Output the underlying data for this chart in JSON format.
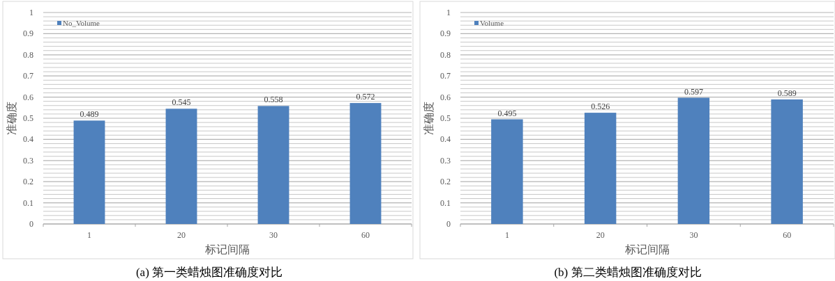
{
  "chart_data": [
    {
      "type": "bar",
      "title": "(a)  第一类蜡烛图准确度对比",
      "xlabel": "标记间隔",
      "ylabel": "准确度",
      "categories": [
        "1",
        "20",
        "30",
        "60"
      ],
      "series": [
        {
          "name": "No_Volume",
          "color": "#4f81bd",
          "values": [
            0.489,
            0.545,
            0.558,
            0.572
          ]
        }
      ],
      "ylim": [
        0,
        1
      ],
      "yticks": [
        0,
        0.1,
        0.2,
        0.3,
        0.4,
        0.5,
        0.6,
        0.7,
        0.8,
        0.9,
        1
      ],
      "grid": "y",
      "legend": "top left",
      "data_labels": true
    },
    {
      "type": "bar",
      "title": "(b)  第二类蜡烛图准确度对比",
      "xlabel": "标记间隔",
      "ylabel": "准确度",
      "categories": [
        "1",
        "20",
        "30",
        "60"
      ],
      "series": [
        {
          "name": "Volume",
          "color": "#4f81bd",
          "values": [
            0.495,
            0.526,
            0.597,
            0.589
          ]
        }
      ],
      "ylim": [
        0,
        1
      ],
      "yticks": [
        0,
        0.1,
        0.2,
        0.3,
        0.4,
        0.5,
        0.6,
        0.7,
        0.8,
        0.9,
        1
      ],
      "grid": "y",
      "legend": "top left",
      "data_labels": true
    }
  ]
}
